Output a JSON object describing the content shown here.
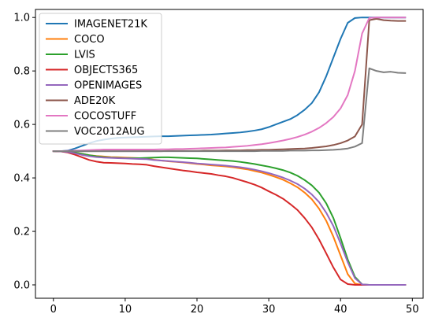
{
  "chart_data": {
    "type": "line",
    "title": "",
    "xlabel": "",
    "ylabel": "",
    "xlim": [
      -2.5,
      51.5
    ],
    "ylim": [
      -0.05,
      1.03
    ],
    "x_ticks": [
      0,
      10,
      20,
      30,
      40,
      50
    ],
    "y_ticks": [
      0.0,
      0.2,
      0.4,
      0.6,
      0.8,
      1.0
    ],
    "x_tick_labels": [
      "0",
      "10",
      "20",
      "30",
      "40",
      "50"
    ],
    "y_tick_labels": [
      "0.0",
      "0.2",
      "0.4",
      "0.6",
      "0.8",
      "1.0"
    ],
    "grid": false,
    "legend_position": "upper-left",
    "x": [
      0,
      1,
      2,
      3,
      4,
      5,
      6,
      7,
      8,
      9,
      10,
      11,
      12,
      13,
      14,
      15,
      16,
      17,
      18,
      19,
      20,
      21,
      22,
      23,
      24,
      25,
      26,
      27,
      28,
      29,
      30,
      31,
      32,
      33,
      34,
      35,
      36,
      37,
      38,
      39,
      40,
      41,
      42,
      43,
      44,
      45,
      46,
      47,
      48,
      49
    ],
    "series": [
      {
        "name": "IMAGENET21K",
        "color": "#1f77b4",
        "values": [
          0.5,
          0.5,
          0.502,
          0.51,
          0.52,
          0.53,
          0.538,
          0.543,
          0.547,
          0.55,
          0.551,
          0.552,
          0.553,
          0.554,
          0.555,
          0.556,
          0.556,
          0.557,
          0.558,
          0.559,
          0.56,
          0.561,
          0.562,
          0.564,
          0.566,
          0.568,
          0.57,
          0.573,
          0.577,
          0.582,
          0.59,
          0.6,
          0.61,
          0.62,
          0.635,
          0.655,
          0.68,
          0.72,
          0.78,
          0.85,
          0.92,
          0.98,
          0.998,
          1.0,
          1.0,
          1.0,
          1.0,
          1.0,
          1.0,
          1.0
        ]
      },
      {
        "name": "COCO",
        "color": "#ff7f0e",
        "values": [
          0.5,
          0.499,
          0.498,
          0.495,
          0.49,
          0.485,
          0.482,
          0.48,
          0.478,
          0.477,
          0.476,
          0.475,
          0.474,
          0.472,
          0.468,
          0.465,
          0.462,
          0.46,
          0.458,
          0.455,
          0.452,
          0.45,
          0.447,
          0.445,
          0.443,
          0.44,
          0.436,
          0.432,
          0.426,
          0.42,
          0.412,
          0.403,
          0.393,
          0.38,
          0.365,
          0.345,
          0.32,
          0.285,
          0.24,
          0.18,
          0.11,
          0.04,
          0.005,
          0.0,
          0.0,
          0.0,
          0.0,
          0.0,
          0.0,
          0.0
        ]
      },
      {
        "name": "LVIS",
        "color": "#2ca02c",
        "values": [
          0.5,
          0.499,
          0.498,
          0.495,
          0.49,
          0.485,
          0.481,
          0.478,
          0.476,
          0.475,
          0.474,
          0.474,
          0.474,
          0.475,
          0.476,
          0.477,
          0.477,
          0.476,
          0.475,
          0.474,
          0.473,
          0.471,
          0.469,
          0.467,
          0.465,
          0.463,
          0.46,
          0.456,
          0.452,
          0.447,
          0.442,
          0.436,
          0.429,
          0.42,
          0.408,
          0.392,
          0.372,
          0.345,
          0.305,
          0.25,
          0.175,
          0.095,
          0.03,
          0.002,
          0.0,
          0.0,
          0.0,
          0.0,
          0.0,
          0.0
        ]
      },
      {
        "name": "OBJECTS365",
        "color": "#d62728",
        "values": [
          0.5,
          0.499,
          0.495,
          0.487,
          0.477,
          0.467,
          0.461,
          0.457,
          0.456,
          0.455,
          0.454,
          0.452,
          0.451,
          0.449,
          0.444,
          0.44,
          0.436,
          0.432,
          0.428,
          0.425,
          0.421,
          0.418,
          0.415,
          0.41,
          0.406,
          0.4,
          0.392,
          0.384,
          0.375,
          0.364,
          0.35,
          0.337,
          0.322,
          0.302,
          0.28,
          0.25,
          0.215,
          0.17,
          0.118,
          0.065,
          0.02,
          0.003,
          0.0,
          0.0,
          0.0,
          0.0,
          0.0,
          0.0,
          0.0,
          0.0
        ]
      },
      {
        "name": "OPENIMAGES",
        "color": "#9467bd",
        "values": [
          0.5,
          0.499,
          0.497,
          0.492,
          0.486,
          0.481,
          0.478,
          0.476,
          0.475,
          0.474,
          0.473,
          0.472,
          0.471,
          0.47,
          0.467,
          0.465,
          0.463,
          0.461,
          0.459,
          0.457,
          0.454,
          0.452,
          0.45,
          0.448,
          0.446,
          0.443,
          0.44,
          0.436,
          0.431,
          0.425,
          0.418,
          0.41,
          0.401,
          0.39,
          0.377,
          0.36,
          0.338,
          0.31,
          0.27,
          0.22,
          0.155,
          0.085,
          0.025,
          0.002,
          0.0,
          0.0,
          0.0,
          0.0,
          0.0,
          0.0
        ]
      },
      {
        "name": "ADE20K",
        "color": "#8c564b",
        "values": [
          0.5,
          0.5,
          0.5,
          0.5,
          0.5,
          0.5,
          0.5,
          0.5,
          0.5,
          0.5,
          0.5,
          0.5,
          0.5,
          0.5,
          0.5,
          0.5,
          0.501,
          0.501,
          0.501,
          0.501,
          0.501,
          0.502,
          0.502,
          0.502,
          0.503,
          0.503,
          0.503,
          0.504,
          0.504,
          0.505,
          0.505,
          0.506,
          0.507,
          0.508,
          0.509,
          0.51,
          0.512,
          0.515,
          0.518,
          0.523,
          0.53,
          0.54,
          0.555,
          0.6,
          0.99,
          0.995,
          0.99,
          0.988,
          0.987,
          0.987
        ]
      },
      {
        "name": "COCOSTUFF",
        "color": "#e377c2",
        "values": [
          0.5,
          0.5,
          0.501,
          0.502,
          0.503,
          0.504,
          0.505,
          0.506,
          0.506,
          0.506,
          0.506,
          0.506,
          0.506,
          0.506,
          0.506,
          0.507,
          0.507,
          0.508,
          0.508,
          0.509,
          0.51,
          0.511,
          0.512,
          0.513,
          0.514,
          0.516,
          0.518,
          0.52,
          0.523,
          0.526,
          0.53,
          0.535,
          0.54,
          0.546,
          0.553,
          0.562,
          0.573,
          0.587,
          0.605,
          0.628,
          0.66,
          0.71,
          0.8,
          0.94,
          0.998,
          1.0,
          1.0,
          1.0,
          1.0,
          1.0
        ]
      },
      {
        "name": "VOC2012AUG",
        "color": "#7f7f7f",
        "values": [
          0.5,
          0.5,
          0.5,
          0.5,
          0.5,
          0.5,
          0.5,
          0.5,
          0.5,
          0.5,
          0.5,
          0.5,
          0.5,
          0.5,
          0.5,
          0.5,
          0.5,
          0.5,
          0.5,
          0.5,
          0.5,
          0.5,
          0.5,
          0.5,
          0.5,
          0.5,
          0.5,
          0.5,
          0.5,
          0.501,
          0.501,
          0.501,
          0.501,
          0.502,
          0.502,
          0.502,
          0.503,
          0.503,
          0.504,
          0.505,
          0.507,
          0.51,
          0.517,
          0.53,
          0.81,
          0.8,
          0.795,
          0.797,
          0.793,
          0.792
        ]
      }
    ]
  }
}
